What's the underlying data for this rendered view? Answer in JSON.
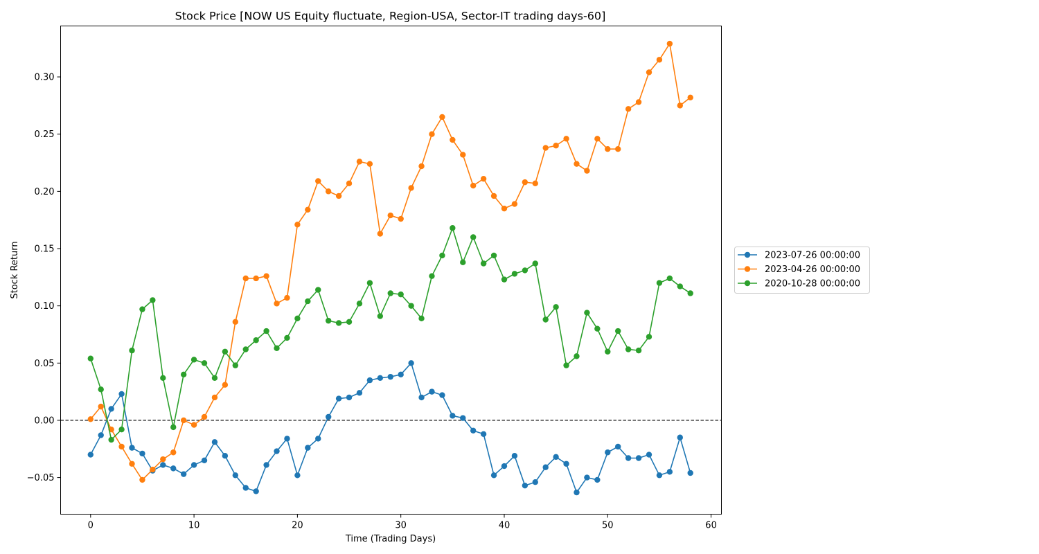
{
  "chart_data": {
    "type": "line",
    "title": "Stock Price [NOW US Equity fluctuate, Region-USA, Sector-IT trading days-60]",
    "xlabel": "Time (Trading Days)",
    "ylabel": "Stock Return",
    "xlim": [
      -2.9,
      61
    ],
    "ylim": [
      -0.082,
      0.3445
    ],
    "xticks": [
      0,
      10,
      20,
      30,
      40,
      50,
      60
    ],
    "xtick_labels": [
      "0",
      "10",
      "20",
      "30",
      "40",
      "50",
      "60"
    ],
    "yticks": [
      -0.05,
      0.0,
      0.05,
      0.1,
      0.15,
      0.2,
      0.25,
      0.3
    ],
    "ytick_labels": [
      "−0.05",
      "0.00",
      "0.05",
      "0.10",
      "0.15",
      "0.20",
      "0.25",
      "0.30"
    ],
    "hline": {
      "y": 0,
      "style": "dashed",
      "color": "#000000"
    },
    "grid": false,
    "legend_position": "outside-right",
    "series": [
      {
        "name": "2023-07-26 00:00:00",
        "color": "#1f77b4",
        "x_start": 0,
        "values": [
          -0.03,
          -0.013,
          0.01,
          0.023,
          -0.024,
          -0.029,
          -0.044,
          -0.039,
          -0.042,
          -0.047,
          -0.039,
          -0.035,
          -0.019,
          -0.031,
          -0.048,
          -0.059,
          -0.062,
          -0.039,
          -0.027,
          -0.016,
          -0.048,
          -0.024,
          -0.016,
          0.003,
          0.019,
          0.02,
          0.024,
          0.035,
          0.037,
          0.038,
          0.04,
          0.05,
          0.02,
          0.025,
          0.022,
          0.004,
          0.002,
          -0.009,
          -0.012,
          -0.048,
          -0.04,
          -0.031,
          -0.057,
          -0.054,
          -0.041,
          -0.032,
          -0.038,
          -0.063,
          -0.05,
          -0.052,
          -0.028,
          -0.023,
          -0.033,
          -0.033,
          -0.03,
          -0.048,
          -0.045,
          -0.015,
          -0.046
        ]
      },
      {
        "name": "2023-04-26 00:00:00",
        "color": "#ff7f0e",
        "x_start": 0,
        "values": [
          0.001,
          0.012,
          -0.008,
          -0.023,
          -0.038,
          -0.052,
          -0.043,
          -0.034,
          -0.028,
          0.0,
          -0.004,
          0.003,
          0.02,
          0.031,
          0.086,
          0.124,
          0.124,
          0.126,
          0.102,
          0.107,
          0.171,
          0.184,
          0.209,
          0.2,
          0.196,
          0.207,
          0.226,
          0.224,
          0.163,
          0.179,
          0.176,
          0.203,
          0.222,
          0.25,
          0.265,
          0.245,
          0.232,
          0.205,
          0.211,
          0.196,
          0.185,
          0.189,
          0.208,
          0.207,
          0.238,
          0.24,
          0.246,
          0.224,
          0.218,
          0.246,
          0.237,
          0.237,
          0.272,
          0.278,
          0.304,
          0.315,
          0.329,
          0.275,
          0.282
        ]
      },
      {
        "name": "2020-10-28 00:00:00",
        "color": "#2ca02c",
        "x_start": 0,
        "values": [
          0.054,
          0.027,
          -0.017,
          -0.008,
          0.061,
          0.097,
          0.105,
          0.037,
          -0.006,
          0.04,
          0.053,
          0.05,
          0.037,
          0.06,
          0.048,
          0.062,
          0.07,
          0.078,
          0.063,
          0.072,
          0.089,
          0.104,
          0.114,
          0.087,
          0.085,
          0.086,
          0.102,
          0.12,
          0.091,
          0.111,
          0.11,
          0.1,
          0.089,
          0.126,
          0.144,
          0.168,
          0.138,
          0.16,
          0.137,
          0.144,
          0.123,
          0.128,
          0.131,
          0.137,
          0.088,
          0.099,
          0.048,
          0.056,
          0.094,
          0.08,
          0.06,
          0.078,
          0.062,
          0.061,
          0.073,
          0.12,
          0.124,
          0.117,
          0.111
        ]
      }
    ]
  }
}
